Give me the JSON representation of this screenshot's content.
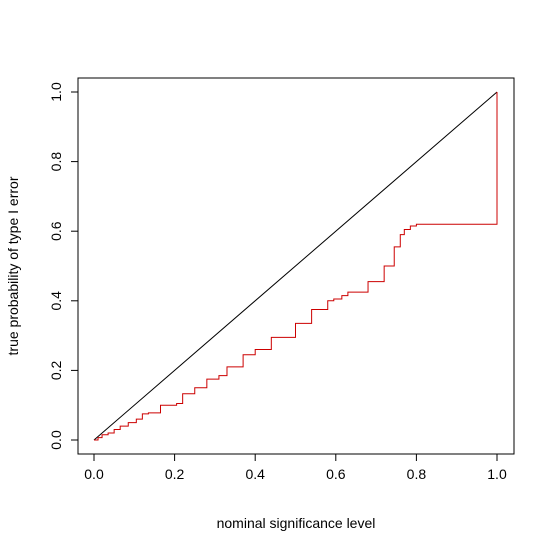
{
  "chart_data": {
    "type": "line",
    "title": "",
    "xlabel": "nominal significance level",
    "ylabel": "true probability of type I error",
    "xlim": [
      0,
      1
    ],
    "ylim": [
      0,
      1
    ],
    "x_ticks": [
      "0.0",
      "0.2",
      "0.4",
      "0.6",
      "0.8",
      "1.0"
    ],
    "y_ticks": [
      "0.0",
      "0.2",
      "0.4",
      "0.6",
      "0.8",
      "1.0"
    ],
    "grid": false,
    "legend": "none",
    "series": [
      {
        "color": "#000000",
        "step": false,
        "x": [
          0,
          1
        ],
        "y": [
          0,
          1
        ]
      },
      {
        "color": "#cc0000",
        "step": true,
        "x": [
          0.0,
          0.01,
          0.02,
          0.035,
          0.05,
          0.065,
          0.085,
          0.105,
          0.12,
          0.135,
          0.165,
          0.205,
          0.22,
          0.25,
          0.28,
          0.31,
          0.33,
          0.37,
          0.4,
          0.44,
          0.5,
          0.54,
          0.58,
          0.595,
          0.615,
          0.63,
          0.68,
          0.72,
          0.745,
          0.76,
          0.77,
          0.785,
          0.8,
          0.82,
          1.0,
          1.0
        ],
        "y": [
          0.0,
          0.007,
          0.015,
          0.02,
          0.03,
          0.04,
          0.05,
          0.06,
          0.075,
          0.078,
          0.1,
          0.105,
          0.133,
          0.15,
          0.175,
          0.185,
          0.21,
          0.245,
          0.26,
          0.295,
          0.335,
          0.375,
          0.4,
          0.405,
          0.415,
          0.425,
          0.455,
          0.5,
          0.555,
          0.59,
          0.605,
          0.615,
          0.62,
          0.62,
          0.62,
          1.0
        ]
      }
    ]
  }
}
